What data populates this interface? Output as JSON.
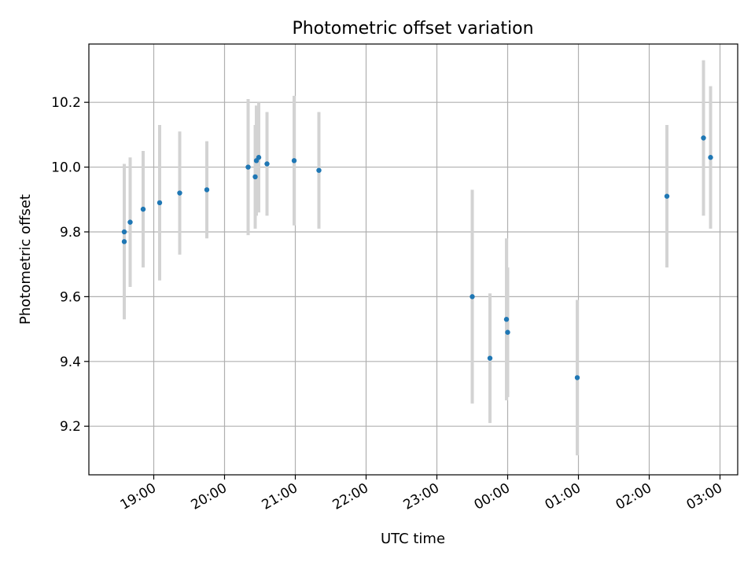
{
  "chart_data": {
    "type": "scatter",
    "title": "Photometric offset variation",
    "xlabel": "UTC time",
    "ylabel": "Photometric offset",
    "x_unit": "UTC time (HH:MM), night spanning midnight",
    "xlim": [
      "18:05",
      "03:15"
    ],
    "ylim": [
      9.05,
      10.38
    ],
    "xticks": [
      "19:00",
      "20:00",
      "21:00",
      "22:00",
      "23:00",
      "00:00",
      "01:00",
      "02:00",
      "03:00"
    ],
    "yticks": [
      9.2,
      9.4,
      9.6,
      9.8,
      10.0,
      10.2
    ],
    "grid": true,
    "colors": {
      "point": "#1f77b4",
      "errorbar": "#d3d3d3",
      "grid": "#b0b0b0"
    },
    "points": [
      {
        "x": "18:35",
        "y": 9.8,
        "err": 0.0
      },
      {
        "x": "18:35",
        "y": 9.77,
        "err": 0.24
      },
      {
        "x": "18:40",
        "y": 9.83,
        "err": 0.2
      },
      {
        "x": "18:51",
        "y": 9.87,
        "err": 0.18
      },
      {
        "x": "19:05",
        "y": 9.89,
        "err": 0.24
      },
      {
        "x": "19:22",
        "y": 9.92,
        "err": 0.19
      },
      {
        "x": "19:45",
        "y": 9.93,
        "err": 0.15
      },
      {
        "x": "20:20",
        "y": 10.0,
        "err": 0.21
      },
      {
        "x": "20:26",
        "y": 9.97,
        "err": 0.16
      },
      {
        "x": "20:27",
        "y": 10.02,
        "err": 0.17
      },
      {
        "x": "20:29",
        "y": 10.03,
        "err": 0.17
      },
      {
        "x": "20:36",
        "y": 10.01,
        "err": 0.16
      },
      {
        "x": "20:59",
        "y": 10.02,
        "err": 0.2
      },
      {
        "x": "21:20",
        "y": 9.99,
        "err": 0.18
      },
      {
        "x": "23:30",
        "y": 9.6,
        "err": 0.33
      },
      {
        "x": "23:45",
        "y": 9.41,
        "err": 0.2
      },
      {
        "x": "23:59",
        "y": 9.53,
        "err": 0.25
      },
      {
        "x": "00:00",
        "y": 9.49,
        "err": 0.2
      },
      {
        "x": "00:59",
        "y": 9.35,
        "err": 0.24
      },
      {
        "x": "02:15",
        "y": 9.91,
        "err": 0.22
      },
      {
        "x": "02:46",
        "y": 10.09,
        "err": 0.24
      },
      {
        "x": "02:52",
        "y": 10.03,
        "err": 0.22
      }
    ]
  }
}
